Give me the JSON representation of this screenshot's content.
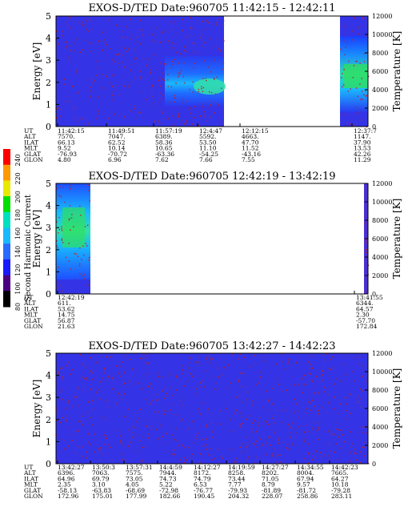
{
  "chart_data": {
    "type": "heatmap",
    "colorbar": {
      "label": "Second Harmonic Current",
      "ticks": [
        "240",
        "220",
        "200",
        "180",
        "160",
        "140",
        "120",
        "100",
        "80"
      ],
      "colors": [
        "#000000",
        "#4b0082",
        "#1a1aff",
        "#2a6bff",
        "#19b9ff",
        "#00e0c0",
        "#00e000",
        "#e8e800",
        "#ff9900",
        "#ff0000"
      ]
    },
    "panels": [
      {
        "title": "EXOS-D/TED   Date:960705   11:42:15 - 12:42:11",
        "ylabel": "Energy [eV]",
        "y2label": "Temperature [K]",
        "ylim": [
          0,
          5
        ],
        "yticks": [
          "0",
          "1",
          "2",
          "3",
          "4",
          "5"
        ],
        "y2lim": [
          0,
          12000
        ],
        "y2ticks": [
          "0",
          "2000",
          "4000",
          "6000",
          "8000",
          "10000",
          "12000"
        ],
        "row_labels": [
          "UT",
          "ALT",
          "ILAT",
          "MLT",
          "GLAT",
          "GLON"
        ],
        "columns": [
          {
            "values": [
              "11:42:15",
              "7570.",
              "66.13",
              "9.52",
              "-76.93",
              "4.80"
            ]
          },
          {
            "values": [
              "11:49:51",
              "7047.",
              "62.52",
              "10.14",
              "-70.72",
              "6.96"
            ]
          },
          {
            "values": [
              "11:57:19",
              "6389.",
              "58.36",
              "10.65",
              "-63.36",
              "7.62"
            ]
          },
          {
            "values": [
              "12:4:47",
              "5592.",
              "53.50",
              "11.10",
              "-54.25",
              "7.66"
            ]
          },
          {
            "values": [
              "12:12:15",
              "4663.",
              "47.70",
              "11.52",
              "-43.16",
              "7.55"
            ]
          },
          {
            "values": [
              "12:37:7",
              "1147.",
              "37.90",
              "13.53",
              "42.26",
              "11.29"
            ]
          }
        ]
      },
      {
        "title": "EXOS-D/TED   Date:960705   12:42:19 - 13:42:19",
        "ylabel": "Energy [eV]",
        "y2label": "Temperature [K]",
        "ylim": [
          0,
          5
        ],
        "yticks": [
          "0",
          "1",
          "2",
          "3",
          "4",
          "5"
        ],
        "y2lim": [
          0,
          12000
        ],
        "y2ticks": [
          "0",
          "2000",
          "4000",
          "6000",
          "8000",
          "10000",
          "12000"
        ],
        "row_labels": [
          "UT",
          "ALT",
          "ILAT",
          "MLT",
          "GLAT",
          "GLON"
        ],
        "columns": [
          {
            "values": [
              "12:42:19",
              "611.",
              "53.62",
              "14.75",
              "56.87",
              "21.63"
            ]
          },
          {
            "values": [
              "13:41:55",
              "6344.",
              "64.57",
              "2.30",
              "-57.70",
              "172.84"
            ]
          }
        ]
      },
      {
        "title": "EXOS-D/TED   Date:960705   13:42:27 - 14:42:23",
        "ylabel": "Energy [eV]",
        "y2label": "Temperature [K]",
        "ylim": [
          0,
          5
        ],
        "yticks": [
          "0",
          "1",
          "2",
          "3",
          "4",
          "5"
        ],
        "y2lim": [
          0,
          12000
        ],
        "y2ticks": [
          "0",
          "2000",
          "4000",
          "6000",
          "8000",
          "10000",
          "12000"
        ],
        "row_labels": [
          "UT",
          "ALT",
          "ILAT",
          "MLT",
          "GLAT",
          "GLON"
        ],
        "columns": [
          {
            "values": [
              "13:42:27",
              "6396.",
              "64.96",
              "2.35",
              "-58.13",
              "172.96"
            ]
          },
          {
            "values": [
              "13:50:3",
              "7063.",
              "69.79",
              "3.10",
              "-63.83",
              "175.01"
            ]
          },
          {
            "values": [
              "13:57:31",
              "7575.",
              "73.05",
              "4.05",
              "-68.69",
              "177.99"
            ]
          },
          {
            "values": [
              "14:4:59",
              "7944.",
              "74.73",
              "5.22",
              "-72.98",
              "182.66"
            ]
          },
          {
            "values": [
              "14:12:27",
              "8172.",
              "74.79",
              "6.53",
              "-76.77",
              "190.45"
            ]
          },
          {
            "values": [
              "14:19:59",
              "8258.",
              "73.44",
              "7.77",
              "-79.93",
              "204.32"
            ]
          },
          {
            "values": [
              "14:27:27",
              "8202.",
              "71.05",
              "8.79",
              "-81.89",
              "228.07"
            ]
          },
          {
            "values": [
              "14:34:55",
              "8004.",
              "67.94",
              "9.57",
              "-81.72",
              "258.86"
            ]
          },
          {
            "values": [
              "14:42:23",
              "7665.",
              "64.27",
              "10.18",
              "-79.28",
              "283.11"
            ]
          }
        ]
      }
    ]
  }
}
